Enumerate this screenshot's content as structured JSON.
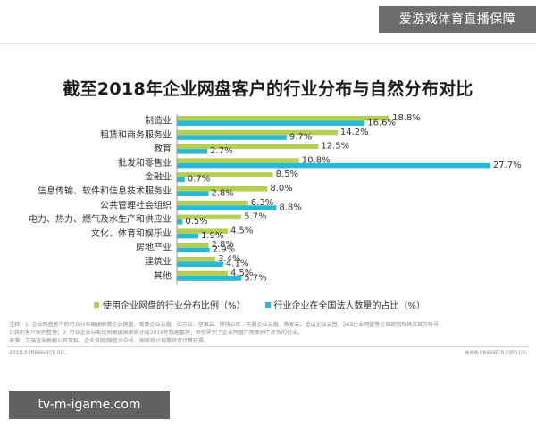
{
  "watermark_top": "爱游戏体育直播保障",
  "watermark_bottom": "tv-m-igame.com",
  "notes": [
    "注释：1. 企业网盘客户的行业分布根据群数企业网盘、爱数企业云盘、亿方云、坚果云、够快云库、天翼企业云盘、燕麦云、金山企业云盘、263企业网盘等公司官网及供应官方账号",
    "公开的客户案例整理；2. 行业企业分布比例根据国家统计局2016年数据整理，但仅罗列了企业网盘厂商案例中涉及的行业。",
    "来源：艾瑞咨询根据公开资料、企业官网/微信公众号、国家统计局等综合计算获得。"
  ],
  "footer_left": "2018.5 iResearch Inc.",
  "footer_right": "www.iresearch.com.cn",
  "colors": {
    "green": "#b4cf52",
    "blue": "#27b9d6"
  },
  "chart_data": {
    "type": "bar",
    "orientation": "horizontal",
    "title": "截至2018年企业网盘客户的行业分布与自然分布对比",
    "categories": [
      "制造业",
      "租赁和商务服务业",
      "教育",
      "批发和零售业",
      "金融业",
      "信息传输、软件和信息技术服务业",
      "公共管理社会组织",
      "电力、热力、燃气及水生产和供应业",
      "文化、体育和娱乐业",
      "房地产业",
      "建筑业",
      "其他"
    ],
    "series": [
      {
        "name": "使用企业网盘的行业分布比例（%）",
        "color": "#b4cf52",
        "values": [
          18.8,
          14.2,
          12.5,
          10.8,
          8.5,
          8.0,
          6.3,
          5.7,
          4.5,
          2.8,
          3.4,
          4.5
        ],
        "labels": [
          "18.8%",
          "14.2%",
          "12.5%",
          "10.8%",
          "8.5%",
          "8.0%",
          "6.3%",
          "5.7%",
          "4.5%",
          "2.8%",
          "3.4%",
          "4.5%"
        ]
      },
      {
        "name": "行业企业在全国法人数量的占比（%）",
        "color": "#27b9d6",
        "values": [
          16.6,
          9.7,
          2.7,
          27.7,
          0.7,
          2.8,
          8.8,
          0.5,
          1.9,
          2.9,
          4.1,
          5.7
        ],
        "labels": [
          "16.6%",
          "9.7%",
          "2.7%",
          "27.7%",
          "0.7%",
          "2.8%",
          "8.8%",
          "0.5%",
          "1.9%",
          "2.9%",
          "4.1%",
          "5.7%"
        ]
      }
    ],
    "xlim": [
      0,
      30
    ],
    "grid": false,
    "legend_position": "bottom"
  }
}
